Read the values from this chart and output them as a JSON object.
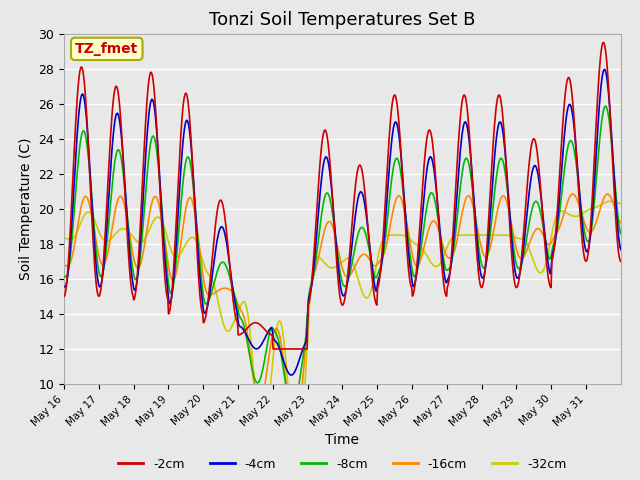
{
  "title": "Tonzi Soil Temperatures Set B",
  "xlabel": "Time",
  "ylabel": "Soil Temperature (C)",
  "ylim": [
    10,
    30
  ],
  "legend_labels": [
    "-2cm",
    "-4cm",
    "-8cm",
    "-16cm",
    "-32cm"
  ],
  "series_colors": [
    "#cc0000",
    "#0000cc",
    "#00bb00",
    "#ff8800",
    "#cccc00"
  ],
  "annotation_label": "TZ_fmet",
  "annotation_bg": "#ffffcc",
  "annotation_border": "#aaaa00",
  "annotation_text_color": "#cc0000",
  "background_color": "#e8e8e8",
  "grid_color": "#ffffff",
  "title_fontsize": 13,
  "yticks": [
    10,
    12,
    14,
    16,
    18,
    20,
    22,
    24,
    26,
    28,
    30
  ],
  "xtick_labels": [
    "May 16",
    "May 17",
    "May 18",
    "May 19",
    "May 20",
    "May 21",
    "May 22",
    "May 23",
    "May 24",
    "May 25",
    "May 26",
    "May 27",
    "May 28",
    "May 29",
    "May 30",
    "May 31"
  ]
}
